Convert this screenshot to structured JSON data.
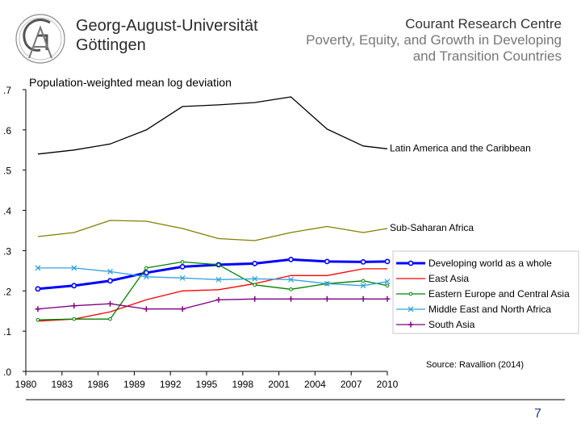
{
  "header": {
    "university_line1": "Georg-August-Universität",
    "university_line2": "Göttingen",
    "centre_title": "Courant Research Centre",
    "centre_subtitle_line1": "Poverty, Equity, and Growth in Developing",
    "centre_subtitle_line2": "and Transition Countries"
  },
  "chart_data": {
    "type": "line",
    "title": "Population-weighted mean log deviation",
    "xlabel": "",
    "ylabel": "",
    "ylim": [
      0,
      0.7
    ],
    "xlim": [
      1980,
      2010
    ],
    "y_ticks": [
      0,
      0.1,
      0.2,
      0.3,
      0.4,
      0.5,
      0.6,
      0.7
    ],
    "y_tick_labels": [
      ".0",
      ".1",
      ".2",
      ".3",
      ".4",
      ".5",
      ".6",
      ".7"
    ],
    "x_ticks": [
      1980,
      1983,
      1986,
      1989,
      1992,
      1995,
      1998,
      2001,
      2004,
      2007,
      2010
    ],
    "grid": false,
    "legend_position": "right",
    "series": [
      {
        "name": "Latin America and the Caribbean",
        "color": "#000000",
        "marker": "none",
        "width": 1.3,
        "x": [
          1981,
          1984,
          1987,
          1990,
          1993,
          1996,
          1999,
          2002,
          2005,
          2008,
          2010
        ],
        "y": [
          0.54,
          0.55,
          0.565,
          0.6,
          0.658,
          0.662,
          0.668,
          0.682,
          0.602,
          0.56,
          0.553
        ]
      },
      {
        "name": "Sub-Saharan Africa",
        "color": "#808000",
        "marker": "none",
        "width": 1.3,
        "x": [
          1981,
          1984,
          1987,
          1990,
          1993,
          1996,
          1999,
          2002,
          2005,
          2008,
          2010
        ],
        "y": [
          0.335,
          0.345,
          0.375,
          0.373,
          0.355,
          0.33,
          0.325,
          0.345,
          0.36,
          0.345,
          0.355
        ]
      },
      {
        "name": "Developing world as a whole",
        "color": "#0000ff",
        "marker": "circle",
        "width": 3,
        "x": [
          1981,
          1984,
          1987,
          1990,
          1993,
          1996,
          1999,
          2002,
          2005,
          2008,
          2010
        ],
        "y": [
          0.205,
          0.213,
          0.225,
          0.245,
          0.26,
          0.265,
          0.268,
          0.278,
          0.273,
          0.272,
          0.273
        ]
      },
      {
        "name": "East Asia",
        "color": "#ff0000",
        "marker": "none",
        "width": 1.3,
        "x": [
          1981,
          1984,
          1987,
          1990,
          1993,
          1996,
          1999,
          2002,
          2005,
          2008,
          2010
        ],
        "y": [
          0.125,
          0.13,
          0.148,
          0.178,
          0.2,
          0.203,
          0.218,
          0.238,
          0.238,
          0.255,
          0.255
        ]
      },
      {
        "name": "Eastern Europe and Central Asia",
        "color": "#008000",
        "marker": "circle-small",
        "width": 1.3,
        "x": [
          1981,
          1984,
          1987,
          1990,
          1993,
          1996,
          1999,
          2002,
          2005,
          2008,
          2010
        ],
        "y": [
          0.128,
          0.13,
          0.13,
          0.257,
          0.272,
          0.265,
          0.215,
          0.204,
          0.218,
          0.225,
          0.213
        ]
      },
      {
        "name": "Middle East and North Africa",
        "color": "#33a3dd",
        "marker": "x",
        "width": 1.3,
        "x": [
          1981,
          1984,
          1987,
          1990,
          1993,
          1996,
          1999,
          2002,
          2005,
          2008,
          2010
        ],
        "y": [
          0.257,
          0.257,
          0.248,
          0.235,
          0.232,
          0.228,
          0.23,
          0.228,
          0.218,
          0.213,
          0.223
        ]
      },
      {
        "name": "South Asia",
        "color": "#800080",
        "marker": "plus",
        "width": 1.3,
        "x": [
          1981,
          1984,
          1987,
          1990,
          1993,
          1996,
          1999,
          2002,
          2005,
          2008,
          2010
        ],
        "y": [
          0.155,
          0.163,
          0.168,
          0.155,
          0.155,
          0.178,
          0.18,
          0.18,
          0.18,
          0.18,
          0.18
        ]
      }
    ],
    "annotations": {
      "source": "Source: Ravallion (2014)"
    }
  },
  "footer": {
    "page_number": "7"
  },
  "colors": {
    "header_text": "#2b2b2b",
    "subtitle_text": "#777777",
    "page_number": "#1f3f7a"
  }
}
